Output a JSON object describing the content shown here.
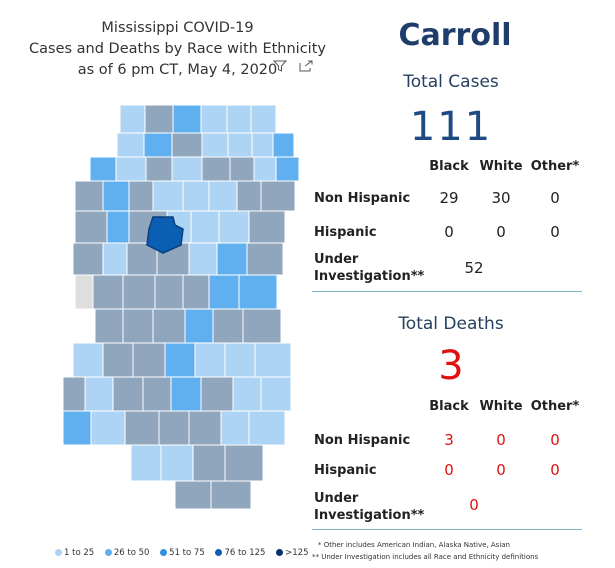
{
  "title": {
    "line1": "Mississippi COVID-19",
    "line2": "Cases and Deaths by Race with Ethnicity",
    "line3": "as of 6 pm CT, May 4, 2020"
  },
  "icons": {
    "filter": "filter-icon",
    "focus": "focus-mode-icon"
  },
  "colors": {
    "bin1": "#aed4f5",
    "bin2": "#60b0f0",
    "bin3": "#2f8fe0",
    "bin4": "#0a5fb5",
    "bin5": "#08306b",
    "no_cases": "#dedede",
    "county_gray": "#8fa6bd",
    "selected": "#0a5fb5",
    "accent": "#1e3d6b",
    "deaths_red": "#e01010"
  },
  "legend": [
    {
      "label": "1 to 25",
      "color": "#aed4f5"
    },
    {
      "label": "26 to 50",
      "color": "#60b0f0"
    },
    {
      "label": "51 to 75",
      "color": "#2f8fe0"
    },
    {
      "label": "76 to 125",
      "color": "#0a5fb5"
    },
    {
      "label": ">125",
      "color": "#08306b"
    }
  ],
  "selected_county": "Carroll",
  "cases": {
    "title": "Total Cases",
    "total": "111",
    "headers": {
      "black": "Black",
      "white": "White",
      "other": "Other*"
    },
    "rows": [
      {
        "label": "Non Hispanic",
        "black": "29",
        "white": "30",
        "other": "0"
      },
      {
        "label": "Hispanic",
        "black": "0",
        "white": "0",
        "other": "0"
      }
    ],
    "under_investigation": {
      "label_line1": "Under",
      "label_line2": "Investigation**",
      "value": "52"
    }
  },
  "deaths": {
    "title": "Total Deaths",
    "total": "3",
    "headers": {
      "black": "Black",
      "white": "White",
      "other": "Other*"
    },
    "rows": [
      {
        "label": "Non Hispanic",
        "black": "3",
        "white": "0",
        "other": "0"
      },
      {
        "label": "Hispanic",
        "black": "0",
        "white": "0",
        "other": "0"
      }
    ],
    "under_investigation": {
      "label_line1": "Under",
      "label_line2": "Investigation**",
      "value": "0"
    }
  },
  "footnotes": {
    "note1": "* Other includes American Indian, Alaska Native, Asian",
    "note2": "** Under Investigation includes all Race and Ethnicity definitions"
  }
}
